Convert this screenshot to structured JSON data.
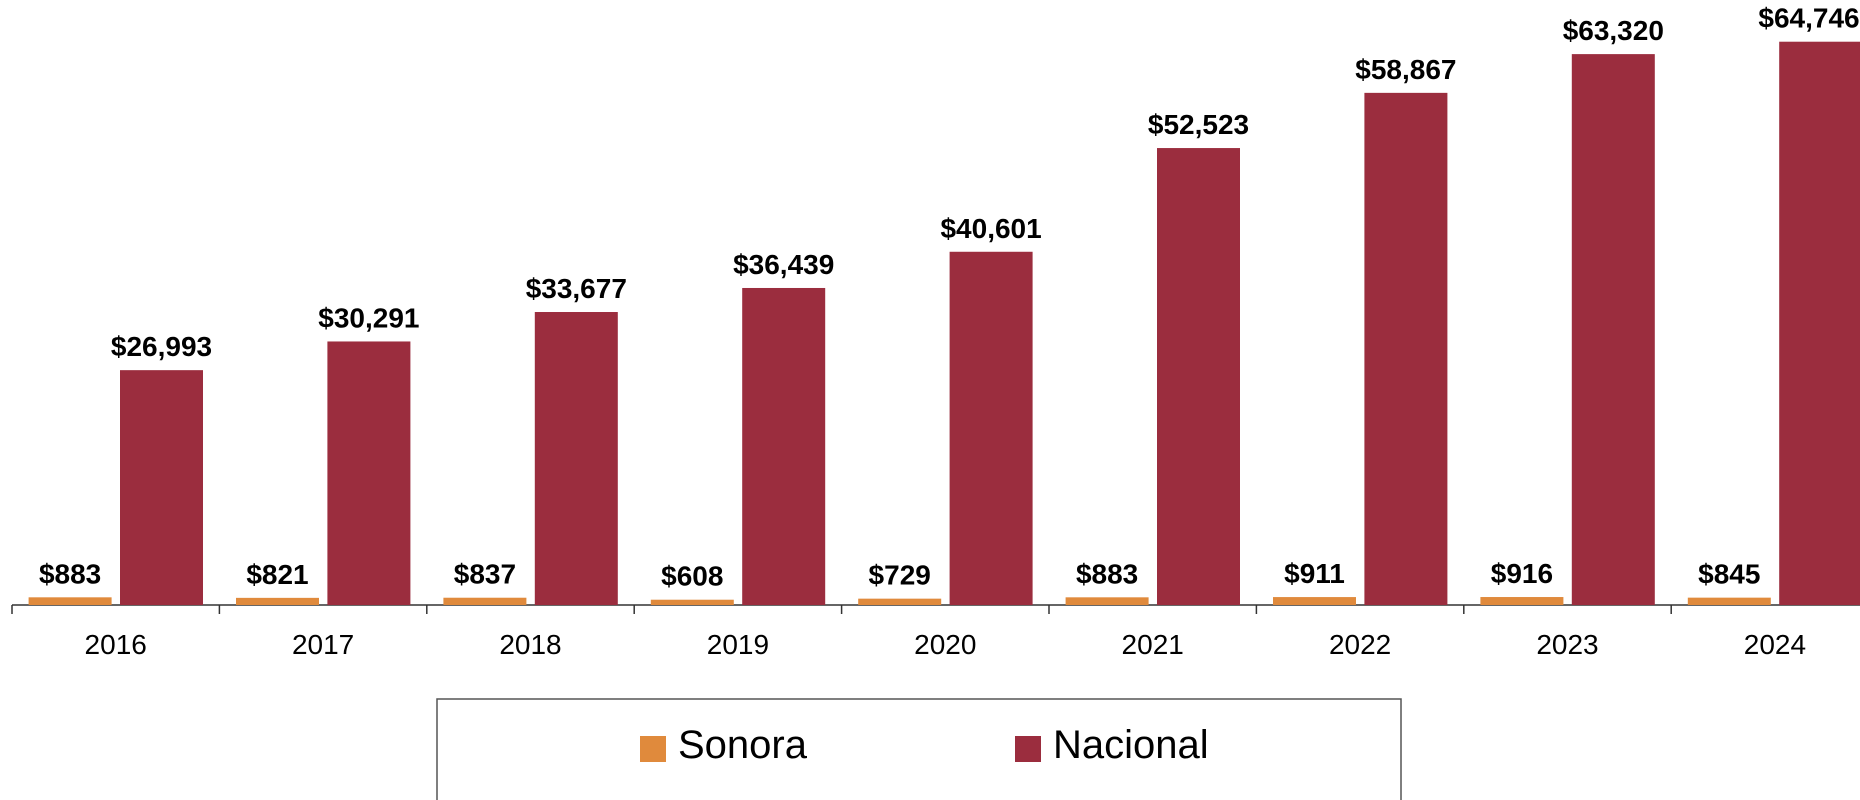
{
  "chart_data": {
    "type": "bar",
    "categories": [
      "2016",
      "2017",
      "2018",
      "2019",
      "2020",
      "2021",
      "2022",
      "2023",
      "2024"
    ],
    "series": [
      {
        "name": "Sonora",
        "color": "#e08a3c",
        "values": [
          883,
          821,
          837,
          608,
          729,
          883,
          911,
          916,
          845
        ],
        "value_labels": [
          "$883",
          "$821",
          "$837",
          "$608",
          "$729",
          "$883",
          "$911",
          "$916",
          "$845"
        ]
      },
      {
        "name": "Nacional",
        "color": "#9b2d3e",
        "values": [
          26993,
          30291,
          33677,
          36439,
          40601,
          52523,
          58867,
          63320,
          64746.4
        ],
        "value_labels": [
          "$26,993",
          "$30,291",
          "$33,677",
          "$36,439",
          "$40,601",
          "$52,523",
          "$58,867",
          "$63,320",
          "$64,746.4"
        ]
      }
    ],
    "legend": "bottom"
  }
}
